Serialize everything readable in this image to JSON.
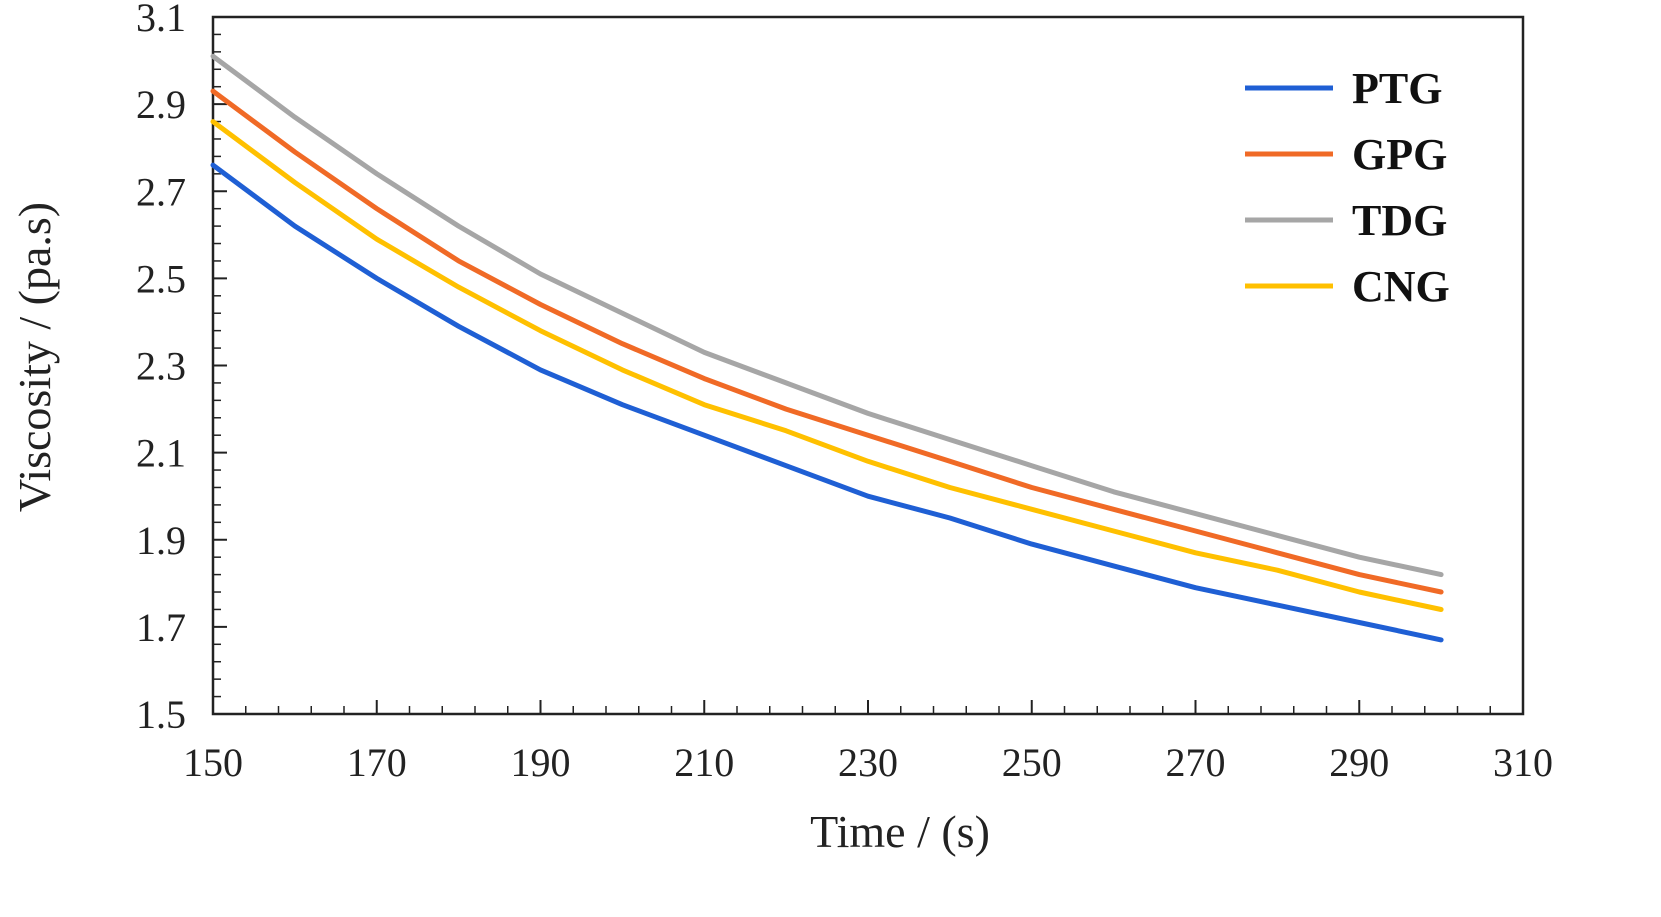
{
  "chart_data": {
    "type": "line",
    "title": "",
    "xlabel": "Time / (s)",
    "ylabel": "Viscosity / (pa.s)",
    "xlim": [
      150,
      310
    ],
    "ylim": [
      1.5,
      3.1
    ],
    "xticks": [
      150,
      170,
      190,
      210,
      230,
      250,
      270,
      290,
      310
    ],
    "yticks": [
      1.5,
      1.7,
      1.9,
      2.1,
      2.3,
      2.5,
      2.7,
      2.9,
      3.1
    ],
    "xtick_labels": [
      "150",
      "170",
      "190",
      "210",
      "230",
      "250",
      "270",
      "290",
      "310"
    ],
    "ytick_labels": [
      "1.5",
      "1.7",
      "1.9",
      "2.1",
      "2.3",
      "2.5",
      "2.7",
      "2.9",
      "3.1"
    ],
    "grid": false,
    "legend_position": "top-right",
    "x": [
      150,
      160,
      170,
      180,
      190,
      200,
      210,
      220,
      230,
      240,
      250,
      260,
      270,
      280,
      290,
      300
    ],
    "series": [
      {
        "name": "PTG",
        "color": "#1f5fd4",
        "values": [
          2.76,
          2.62,
          2.5,
          2.39,
          2.29,
          2.21,
          2.14,
          2.07,
          2.0,
          1.95,
          1.89,
          1.84,
          1.79,
          1.75,
          1.71,
          1.67
        ]
      },
      {
        "name": "GPG",
        "color": "#f06a26",
        "values": [
          2.93,
          2.79,
          2.66,
          2.54,
          2.44,
          2.35,
          2.27,
          2.2,
          2.14,
          2.08,
          2.02,
          1.97,
          1.92,
          1.87,
          1.82,
          1.78
        ]
      },
      {
        "name": "TDG",
        "color": "#a6a6a6",
        "values": [
          3.01,
          2.87,
          2.74,
          2.62,
          2.51,
          2.42,
          2.33,
          2.26,
          2.19,
          2.13,
          2.07,
          2.01,
          1.96,
          1.91,
          1.86,
          1.82
        ]
      },
      {
        "name": "CNG",
        "color": "#ffc000",
        "values": [
          2.86,
          2.72,
          2.59,
          2.48,
          2.38,
          2.29,
          2.21,
          2.15,
          2.08,
          2.02,
          1.97,
          1.92,
          1.87,
          1.83,
          1.78,
          1.74
        ]
      }
    ]
  }
}
